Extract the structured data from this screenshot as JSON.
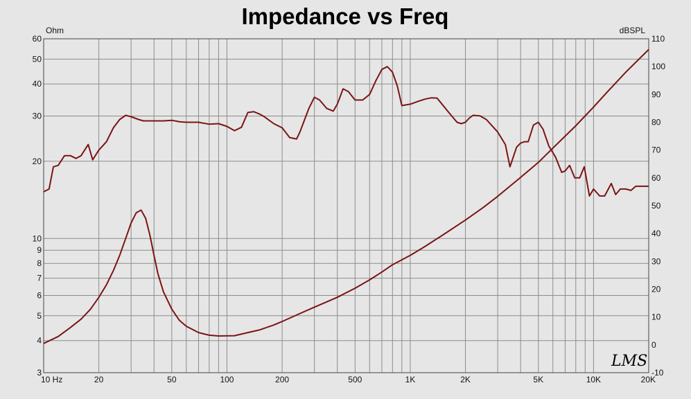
{
  "chart_data": {
    "type": "line",
    "title": "Impedance vs Freq",
    "left_axis_unit": "Ohm",
    "right_axis_unit": "dBSPL",
    "x_scale": "log",
    "xlim": [
      10,
      20000
    ],
    "left_ylim": [
      3,
      60
    ],
    "left_y_scale": "log",
    "right_ylim": [
      -10,
      110
    ],
    "x_ticks": [
      {
        "value": 10,
        "label": "10  Hz"
      },
      {
        "value": 20,
        "label": "20"
      },
      {
        "value": 50,
        "label": "50"
      },
      {
        "value": 100,
        "label": "100"
      },
      {
        "value": 200,
        "label": "200"
      },
      {
        "value": 500,
        "label": "500"
      },
      {
        "value": 1000,
        "label": "1K"
      },
      {
        "value": 2000,
        "label": "2K"
      },
      {
        "value": 5000,
        "label": "5K"
      },
      {
        "value": 10000,
        "label": "10K"
      },
      {
        "value": 20000,
        "label": "20K"
      }
    ],
    "left_ticks": [
      {
        "value": 3,
        "label": "3"
      },
      {
        "value": 4,
        "label": "4"
      },
      {
        "value": 5,
        "label": "5"
      },
      {
        "value": 6,
        "label": "6"
      },
      {
        "value": 7,
        "label": "7"
      },
      {
        "value": 8,
        "label": "8"
      },
      {
        "value": 9,
        "label": "9"
      },
      {
        "value": 10,
        "label": "10"
      },
      {
        "value": 20,
        "label": "20"
      },
      {
        "value": 30,
        "label": "30"
      },
      {
        "value": 40,
        "label": "40"
      },
      {
        "value": 50,
        "label": "50"
      },
      {
        "value": 60,
        "label": "60"
      }
    ],
    "right_ticks": [
      {
        "value": -10,
        "label": "-10"
      },
      {
        "value": 0,
        "label": "0"
      },
      {
        "value": 10,
        "label": "10"
      },
      {
        "value": 20,
        "label": "20"
      },
      {
        "value": 30,
        "label": "30"
      },
      {
        "value": 40,
        "label": "40"
      },
      {
        "value": 50,
        "label": "50"
      },
      {
        "value": 60,
        "label": "60"
      },
      {
        "value": 70,
        "label": "70"
      },
      {
        "value": 80,
        "label": "80"
      },
      {
        "value": 90,
        "label": "90"
      },
      {
        "value": 100,
        "label": "100"
      },
      {
        "value": 110,
        "label": "110"
      }
    ],
    "grid": true,
    "line_color": "#7a1414",
    "series": [
      {
        "axis": "left",
        "points": [
          [
            10,
            3.9
          ],
          [
            12,
            4.15
          ],
          [
            14,
            4.5
          ],
          [
            16,
            4.85
          ],
          [
            18,
            5.3
          ],
          [
            20,
            5.9
          ],
          [
            22,
            6.6
          ],
          [
            24,
            7.5
          ],
          [
            26,
            8.6
          ],
          [
            28,
            10
          ],
          [
            30,
            11.5
          ],
          [
            32,
            12.6
          ],
          [
            34,
            12.9
          ],
          [
            36,
            12.0
          ],
          [
            38,
            10.3
          ],
          [
            40,
            8.6
          ],
          [
            42,
            7.3
          ],
          [
            45,
            6.2
          ],
          [
            50,
            5.3
          ],
          [
            55,
            4.8
          ],
          [
            60,
            4.55
          ],
          [
            70,
            4.3
          ],
          [
            80,
            4.2
          ],
          [
            90,
            4.17
          ],
          [
            110,
            4.18
          ],
          [
            130,
            4.3
          ],
          [
            150,
            4.4
          ],
          [
            180,
            4.6
          ],
          [
            200,
            4.75
          ],
          [
            250,
            5.1
          ],
          [
            300,
            5.4
          ],
          [
            400,
            5.9
          ],
          [
            500,
            6.4
          ],
          [
            600,
            6.9
          ],
          [
            700,
            7.4
          ],
          [
            800,
            7.9
          ],
          [
            1000,
            8.6
          ],
          [
            1200,
            9.3
          ],
          [
            1500,
            10.3
          ],
          [
            2000,
            11.8
          ],
          [
            2500,
            13.2
          ],
          [
            3000,
            14.6
          ],
          [
            4000,
            17.3
          ],
          [
            5000,
            19.8
          ],
          [
            6000,
            22.5
          ],
          [
            8000,
            27.5
          ],
          [
            10000,
            32.5
          ],
          [
            12000,
            37.5
          ],
          [
            15000,
            44.5
          ],
          [
            20000,
            54.5
          ]
        ]
      },
      {
        "axis": "right",
        "points": [
          [
            10,
            55
          ],
          [
            10.7,
            56
          ],
          [
            11.3,
            64
          ],
          [
            12,
            64.5
          ],
          [
            13,
            68
          ],
          [
            14,
            68
          ],
          [
            15,
            67
          ],
          [
            16,
            68
          ],
          [
            17.5,
            72
          ],
          [
            18.5,
            66.5
          ],
          [
            20,
            70
          ],
          [
            22,
            73
          ],
          [
            24,
            78
          ],
          [
            26,
            81
          ],
          [
            28,
            82.5
          ],
          [
            30,
            82
          ],
          [
            33,
            81
          ],
          [
            35,
            80.5
          ],
          [
            40,
            80.5
          ],
          [
            45,
            80.5
          ],
          [
            50,
            80.7
          ],
          [
            55,
            80.2
          ],
          [
            60,
            80
          ],
          [
            70,
            80
          ],
          [
            80,
            79.3
          ],
          [
            90,
            79.5
          ],
          [
            100,
            78.5
          ],
          [
            110,
            77
          ],
          [
            120,
            78.2
          ],
          [
            130,
            83.5
          ],
          [
            140,
            83.8
          ],
          [
            150,
            83
          ],
          [
            160,
            82
          ],
          [
            180,
            79.5
          ],
          [
            200,
            78
          ],
          [
            220,
            74.5
          ],
          [
            240,
            74
          ],
          [
            250,
            76.5
          ],
          [
            280,
            85
          ],
          [
            300,
            89
          ],
          [
            320,
            88
          ],
          [
            350,
            85
          ],
          [
            380,
            84
          ],
          [
            400,
            86.5
          ],
          [
            430,
            92
          ],
          [
            460,
            91
          ],
          [
            500,
            88
          ],
          [
            550,
            88
          ],
          [
            600,
            90
          ],
          [
            650,
            95
          ],
          [
            700,
            99
          ],
          [
            750,
            100
          ],
          [
            800,
            98
          ],
          [
            850,
            93
          ],
          [
            900,
            86
          ],
          [
            1000,
            86.5
          ],
          [
            1100,
            87.5
          ],
          [
            1200,
            88.3
          ],
          [
            1300,
            88.8
          ],
          [
            1400,
            88.7
          ],
          [
            1600,
            84
          ],
          [
            1800,
            80
          ],
          [
            1900,
            79.5
          ],
          [
            2000,
            80
          ],
          [
            2100,
            81.5
          ],
          [
            2200,
            82.5
          ],
          [
            2400,
            82.3
          ],
          [
            2600,
            81
          ],
          [
            3000,
            76.5
          ],
          [
            3300,
            72
          ],
          [
            3500,
            64
          ],
          [
            3800,
            71
          ],
          [
            4000,
            72.5
          ],
          [
            4200,
            73
          ],
          [
            4400,
            73
          ],
          [
            4700,
            79
          ],
          [
            5000,
            80
          ],
          [
            5300,
            77.5
          ],
          [
            5700,
            71.5
          ],
          [
            6200,
            67.5
          ],
          [
            6700,
            62
          ],
          [
            7000,
            62.5
          ],
          [
            7400,
            64.5
          ],
          [
            7900,
            60
          ],
          [
            8400,
            60
          ],
          [
            8900,
            64
          ],
          [
            9500,
            53.5
          ],
          [
            10000,
            56
          ],
          [
            10800,
            53.5
          ],
          [
            11500,
            53.5
          ],
          [
            12500,
            58
          ],
          [
            13200,
            54
          ],
          [
            14000,
            56
          ],
          [
            15000,
            56
          ],
          [
            16000,
            55.5
          ],
          [
            17000,
            57
          ],
          [
            18000,
            57
          ],
          [
            20000,
            57
          ]
        ]
      }
    ]
  },
  "watermark": "LMS"
}
